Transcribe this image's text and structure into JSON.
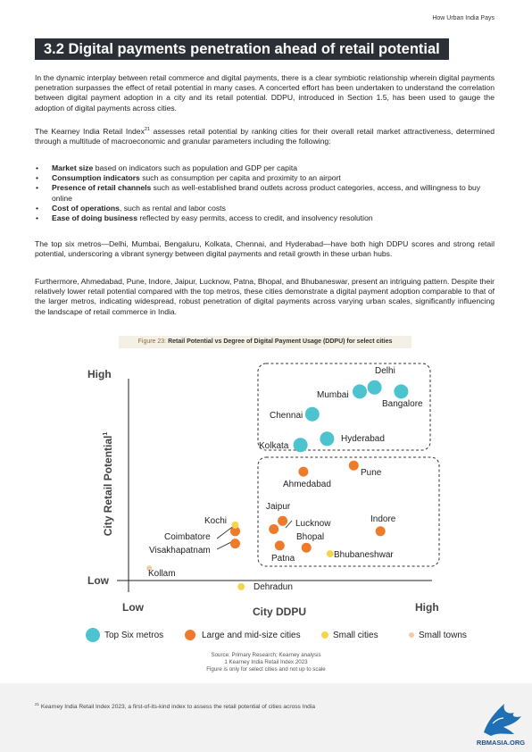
{
  "header": {
    "running_title": "How Urban India Pays"
  },
  "section": {
    "title": "3.2 Digital payments penetration ahead of retail potential"
  },
  "paragraphs": {
    "p1": "In the dynamic interplay between retail commerce and digital payments, there is a clear symbiotic relationship wherein digital payments penetration surpasses the effect of retail potential in many cases. A concerted effort has been undertaken to understand the correlation between digital payment adoption in a city and its retail potential. DDPU, introduced in Section 1.5, has been used to gauge the adoption of digital payments across cities.",
    "p2_before": "The Kearney India Retail Index",
    "p2_sup": "21",
    "p2_after": " assesses retail potential by ranking cities for their overall retail market attractiveness, determined through a multitude of macroeconomic and granular parameters including the following:",
    "p3": "The top six metros—Delhi, Mumbai, Bengaluru, Kolkata, Chennai, and Hyderabad—have both high DDPU scores and strong retail potential, underscoring a vibrant synergy between digital payments and retail growth in these urban hubs.",
    "p4": "Furthermore, Ahmedabad, Pune, Indore, Jaipur, Lucknow, Patna, Bhopal, and Bhubaneswar, present an intriguing pattern. Despite their relatively lower retail potential compared with the top metros, these cities demonstrate a digital payment adoption comparable to that of the larger metros, indicating widespread, robust penetration of digital payments across varying urban scales, significantly influencing the landscape of retail commerce in India."
  },
  "bullets": [
    {
      "term": "Market size",
      "text": " based on indicators such as population and GDP per capita"
    },
    {
      "term": "Consumption indicators",
      "text": " such as consumption per capita and proximity to an airport"
    },
    {
      "term": "Presence of retail channels",
      "text": " such as well-established brand outlets across product categories, access, and willingness to buy online"
    },
    {
      "term": "Cost of operations",
      "text": ", such as rental and labor costs"
    },
    {
      "term": "Ease of doing business",
      "text": " reflected by easy permits, access to credit, and insolvency resolution"
    }
  ],
  "figure": {
    "caption_prefix": "Figure 23: ",
    "caption_title": "Retail Potential vs Degree of Digital Payment Usage (DDPU) for select cities"
  },
  "chart_data": {
    "type": "scatter",
    "xlabel": "City DDPU",
    "ylabel": "City Retail Potential",
    "ylabel_sup": "1",
    "x_low_label": "Low",
    "x_high_label": "High",
    "y_low_label": "Low",
    "y_high_label": "High",
    "colors": {
      "top_six": "#4dc3cf",
      "large_mid": "#ee7b2a",
      "small_cities": "#f5d54f",
      "small_towns": "#f7c9a0"
    },
    "legend": [
      {
        "key": "top_six",
        "label": "Top Six metros"
      },
      {
        "key": "large_mid",
        "label": "Large and mid-size cities"
      },
      {
        "key": "small_cities",
        "label": "Small cities"
      },
      {
        "key": "small_towns",
        "label": "Small towns"
      }
    ],
    "points": [
      {
        "name": "Delhi",
        "group": "top_six",
        "x": 0.83,
        "y": 0.94
      },
      {
        "name": "Mumbai",
        "group": "top_six",
        "x": 0.78,
        "y": 0.92
      },
      {
        "name": "Bangalore",
        "group": "top_six",
        "x": 0.92,
        "y": 0.92
      },
      {
        "name": "Chennai",
        "group": "top_six",
        "x": 0.62,
        "y": 0.81
      },
      {
        "name": "Hyderabad",
        "group": "top_six",
        "x": 0.67,
        "y": 0.69
      },
      {
        "name": "Kolkata",
        "group": "top_six",
        "x": 0.58,
        "y": 0.66
      },
      {
        "name": "Pune",
        "group": "large_mid",
        "x": 0.76,
        "y": 0.56
      },
      {
        "name": "Ahmedabad",
        "group": "large_mid",
        "x": 0.59,
        "y": 0.53
      },
      {
        "name": "Jaipur",
        "group": "large_mid",
        "x": 0.52,
        "y": 0.29
      },
      {
        "name": "Lucknow",
        "group": "large_mid",
        "x": 0.49,
        "y": 0.25
      },
      {
        "name": "Indore",
        "group": "large_mid",
        "x": 0.85,
        "y": 0.24
      },
      {
        "name": "Coimbatore",
        "group": "large_mid",
        "x": 0.36,
        "y": 0.24
      },
      {
        "name": "Visakhapatnam",
        "group": "large_mid",
        "x": 0.36,
        "y": 0.18
      },
      {
        "name": "Bhopal",
        "group": "large_mid",
        "x": 0.6,
        "y": 0.16
      },
      {
        "name": "Patna",
        "group": "large_mid",
        "x": 0.51,
        "y": 0.17
      },
      {
        "name": "Kochi",
        "group": "small_cities",
        "x": 0.36,
        "y": 0.27
      },
      {
        "name": "Bhubaneshwar",
        "group": "small_cities",
        "x": 0.68,
        "y": 0.13
      },
      {
        "name": "Dehradun",
        "group": "small_cities",
        "x": 0.38,
        "y": -0.03
      },
      {
        "name": "Kollam",
        "group": "small_towns",
        "x": 0.07,
        "y": 0.06
      }
    ]
  },
  "notes": {
    "source": "Source: Primary Research; Kearney analysis",
    "footnote_ref": "1 Kearney India Retail Index 2023",
    "disclaimer": "Figure is only for select cities and not up to scale"
  },
  "footer": {
    "footnote_sup": "21",
    "footnote_text": " Kearney India Retail Index 2023, a first-of-its-kind index to assess the retail potential of cities across India",
    "logo_text": "RBMASIA.ORG"
  }
}
